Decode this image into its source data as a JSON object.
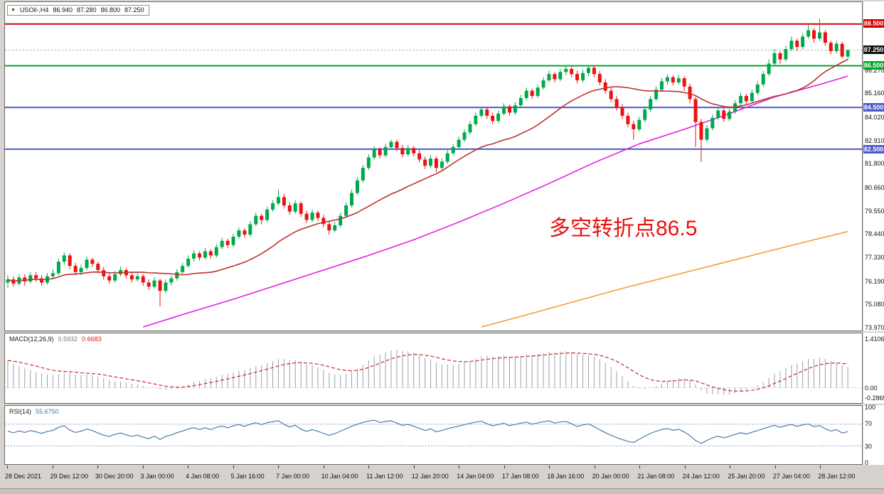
{
  "title_box": {
    "symbol": "USOil-,H4",
    "open": "86.940",
    "high": "87.280",
    "low": "86.800",
    "close": "87.250"
  },
  "annotation": {
    "text": "多空转折点86.5",
    "color": "#e81010"
  },
  "colors": {
    "candle_up": "#00a94c",
    "candle_down": "#ee1111",
    "ma_fast": "#c03030",
    "ma_mid": "#e11fe1",
    "ma_slow": "#efa031",
    "hline_red": "#d10000",
    "hline_green": "#00a62c",
    "hline_blue": "#4a5acc",
    "macd_histogram": "#9aa0a6",
    "macd_signal": "#cc2222",
    "rsi_line": "#4a7aa8",
    "current_price_bg": "#101010",
    "background": "#d6d3ce"
  },
  "main_chart": {
    "h_lines": [
      {
        "label": "88.500",
        "color": "#d10000"
      },
      {
        "label": "86.500",
        "color": "#00a62c"
      },
      {
        "label": "84.500",
        "color": "#4a5acc"
      },
      {
        "label": "82.500",
        "color": "#4a5acc"
      }
    ],
    "current_price": {
      "value": 87.25,
      "label": "87.250"
    },
    "y_labels": [
      "86.270",
      "85.160",
      "84.020",
      "82.910",
      "81.800",
      "80.660",
      "79.550",
      "78.440",
      "77.330",
      "76.190",
      "75.080",
      "73.970"
    ]
  },
  "x_axis": {
    "bars_per_label": 8,
    "labels": [
      "28 Dec 2021",
      "29 Dec 12:00",
      "30 Dec 20:00",
      "3 Jan 00:00",
      "4 Jan 08:00",
      "5 Jan 16:00",
      "7 Jan 00:00",
      "10 Jan 04:00",
      "11 Jan 12:00",
      "12 Jan 20:00",
      "14 Jan 04:00",
      "17 Jan 08:00",
      "18 Jan 16:00",
      "20 Jan 00:00",
      "21 Jan 08:00",
      "24 Jan 12:00",
      "25 Jan 20:00",
      "27 Jan 04:00",
      "28 Jan 12:00"
    ]
  },
  "chart_data": {
    "type": "candlestick",
    "symbol": "USOil",
    "timeframe": "H4",
    "ylim": [
      73.8,
      89.55
    ],
    "candles": [
      [
        76.1,
        76.45,
        75.85,
        76.25
      ],
      [
        76.25,
        76.4,
        75.9,
        76.05
      ],
      [
        76.05,
        76.5,
        75.95,
        76.35
      ],
      [
        76.35,
        76.5,
        75.95,
        76.15
      ],
      [
        76.15,
        76.6,
        76.05,
        76.45
      ],
      [
        76.45,
        76.6,
        76.15,
        76.3
      ],
      [
        76.3,
        76.45,
        75.95,
        76.1
      ],
      [
        76.1,
        76.55,
        76.0,
        76.4
      ],
      [
        76.4,
        76.75,
        76.25,
        76.55
      ],
      [
        76.55,
        77.25,
        76.45,
        77.1
      ],
      [
        77.1,
        77.55,
        76.95,
        77.4
      ],
      [
        77.4,
        77.5,
        76.75,
        76.9
      ],
      [
        76.9,
        77.05,
        76.45,
        76.6
      ],
      [
        76.6,
        76.95,
        76.45,
        76.8
      ],
      [
        76.8,
        77.35,
        76.7,
        77.2
      ],
      [
        77.2,
        77.3,
        76.85,
        77.0
      ],
      [
        77.0,
        77.1,
        76.55,
        76.7
      ],
      [
        76.7,
        76.85,
        76.25,
        76.4
      ],
      [
        76.4,
        76.55,
        76.05,
        76.2
      ],
      [
        76.2,
        76.65,
        76.1,
        76.5
      ],
      [
        76.5,
        76.85,
        76.4,
        76.7
      ],
      [
        76.7,
        76.8,
        76.3,
        76.45
      ],
      [
        76.45,
        76.6,
        76.1,
        76.25
      ],
      [
        76.25,
        76.55,
        76.15,
        76.4
      ],
      [
        76.4,
        76.5,
        75.95,
        76.1
      ],
      [
        76.1,
        76.25,
        75.75,
        75.9
      ],
      [
        75.9,
        76.35,
        75.8,
        76.2
      ],
      [
        76.2,
        76.3,
        74.95,
        75.7
      ],
      [
        75.7,
        76.25,
        75.6,
        76.1
      ],
      [
        76.1,
        76.45,
        75.95,
        76.3
      ],
      [
        76.3,
        76.75,
        76.2,
        76.6
      ],
      [
        76.6,
        77.05,
        76.5,
        76.9
      ],
      [
        76.9,
        77.4,
        76.8,
        77.25
      ],
      [
        77.25,
        77.65,
        77.1,
        77.5
      ],
      [
        77.5,
        77.6,
        77.15,
        77.3
      ],
      [
        77.3,
        77.75,
        77.2,
        77.6
      ],
      [
        77.6,
        77.7,
        77.25,
        77.4
      ],
      [
        77.4,
        77.95,
        77.3,
        77.8
      ],
      [
        77.8,
        78.25,
        77.7,
        78.1
      ],
      [
        78.1,
        78.2,
        77.75,
        77.9
      ],
      [
        77.9,
        78.45,
        77.8,
        78.3
      ],
      [
        78.3,
        78.75,
        78.2,
        78.6
      ],
      [
        78.6,
        78.7,
        78.25,
        78.4
      ],
      [
        78.4,
        79.05,
        78.3,
        78.9
      ],
      [
        78.9,
        79.45,
        78.8,
        79.3
      ],
      [
        79.3,
        79.4,
        78.9,
        79.1
      ],
      [
        79.1,
        79.75,
        79.0,
        79.6
      ],
      [
        79.6,
        80.05,
        79.5,
        79.9
      ],
      [
        79.9,
        80.55,
        79.8,
        80.2
      ],
      [
        80.2,
        80.35,
        79.65,
        79.8
      ],
      [
        79.8,
        79.95,
        79.35,
        79.5
      ],
      [
        79.5,
        80.05,
        79.4,
        79.9
      ],
      [
        79.9,
        80.0,
        79.25,
        79.4
      ],
      [
        79.4,
        79.55,
        78.95,
        79.1
      ],
      [
        79.1,
        79.6,
        79.0,
        79.45
      ],
      [
        79.45,
        79.55,
        79.05,
        79.2
      ],
      [
        79.2,
        79.35,
        78.75,
        78.9
      ],
      [
        78.9,
        79.05,
        78.4,
        78.6
      ],
      [
        78.6,
        79.0,
        78.5,
        78.85
      ],
      [
        78.85,
        79.45,
        78.75,
        79.3
      ],
      [
        79.3,
        79.95,
        79.2,
        79.8
      ],
      [
        79.8,
        80.55,
        79.7,
        80.4
      ],
      [
        80.4,
        81.15,
        80.3,
        81.0
      ],
      [
        81.0,
        81.75,
        80.9,
        81.6
      ],
      [
        81.6,
        82.25,
        81.5,
        82.1
      ],
      [
        82.1,
        82.65,
        82.0,
        82.5
      ],
      [
        82.5,
        82.6,
        82.05,
        82.2
      ],
      [
        82.2,
        82.75,
        82.1,
        82.6
      ],
      [
        82.6,
        82.95,
        82.5,
        82.85
      ],
      [
        82.85,
        82.95,
        82.4,
        82.55
      ],
      [
        82.55,
        82.7,
        82.1,
        82.25
      ],
      [
        82.25,
        82.7,
        82.15,
        82.55
      ],
      [
        82.55,
        82.65,
        82.15,
        82.3
      ],
      [
        82.3,
        82.45,
        81.85,
        82.0
      ],
      [
        82.0,
        82.15,
        81.55,
        81.7
      ],
      [
        81.7,
        82.2,
        81.6,
        82.05
      ],
      [
        82.05,
        82.15,
        81.4,
        81.6
      ],
      [
        81.6,
        82.05,
        81.5,
        81.9
      ],
      [
        81.9,
        82.45,
        81.8,
        82.3
      ],
      [
        82.3,
        82.75,
        82.2,
        82.6
      ],
      [
        82.6,
        83.1,
        82.5,
        82.95
      ],
      [
        82.95,
        83.45,
        82.85,
        83.3
      ],
      [
        83.3,
        83.85,
        83.2,
        83.7
      ],
      [
        83.7,
        84.25,
        83.6,
        84.1
      ],
      [
        84.1,
        84.55,
        84.0,
        84.4
      ],
      [
        84.4,
        84.5,
        83.95,
        84.1
      ],
      [
        84.1,
        84.25,
        83.7,
        83.85
      ],
      [
        83.85,
        84.35,
        83.75,
        84.2
      ],
      [
        84.2,
        84.7,
        84.1,
        84.55
      ],
      [
        84.55,
        84.65,
        84.1,
        84.25
      ],
      [
        84.25,
        84.75,
        84.15,
        84.6
      ],
      [
        84.6,
        85.1,
        84.5,
        84.95
      ],
      [
        84.95,
        85.45,
        84.85,
        85.3
      ],
      [
        85.3,
        85.4,
        84.9,
        85.05
      ],
      [
        85.05,
        85.6,
        84.95,
        85.45
      ],
      [
        85.45,
        85.95,
        85.35,
        85.8
      ],
      [
        85.8,
        86.25,
        85.7,
        86.1
      ],
      [
        86.1,
        86.2,
        85.7,
        85.85
      ],
      [
        85.85,
        86.35,
        85.75,
        86.2
      ],
      [
        86.2,
        86.5,
        86.05,
        86.35
      ],
      [
        86.35,
        86.45,
        85.95,
        86.1
      ],
      [
        86.1,
        86.25,
        85.65,
        85.8
      ],
      [
        85.8,
        86.3,
        85.7,
        86.15
      ],
      [
        86.15,
        86.5,
        86.0,
        86.4
      ],
      [
        86.4,
        86.5,
        85.95,
        86.1
      ],
      [
        86.1,
        86.25,
        85.55,
        85.7
      ],
      [
        85.7,
        85.85,
        85.15,
        85.3
      ],
      [
        85.3,
        85.45,
        84.75,
        84.9
      ],
      [
        84.9,
        85.05,
        84.35,
        84.5
      ],
      [
        84.5,
        84.65,
        83.95,
        84.1
      ],
      [
        84.1,
        84.25,
        83.55,
        83.7
      ],
      [
        83.7,
        83.85,
        82.95,
        83.45
      ],
      [
        83.45,
        84.05,
        83.35,
        83.9
      ],
      [
        83.9,
        84.55,
        83.8,
        84.4
      ],
      [
        84.4,
        85.05,
        84.3,
        84.9
      ],
      [
        84.9,
        85.5,
        84.8,
        85.35
      ],
      [
        85.35,
        85.9,
        85.25,
        85.75
      ],
      [
        85.75,
        86.1,
        85.6,
        85.95
      ],
      [
        85.95,
        86.05,
        85.55,
        85.7
      ],
      [
        85.7,
        86.05,
        85.6,
        85.9
      ],
      [
        85.9,
        86.0,
        85.3,
        85.5
      ],
      [
        85.5,
        85.65,
        84.7,
        84.9
      ],
      [
        84.9,
        85.0,
        82.6,
        83.8
      ],
      [
        83.8,
        83.95,
        81.9,
        82.95
      ],
      [
        82.95,
        83.65,
        82.85,
        83.5
      ],
      [
        83.5,
        84.15,
        83.4,
        84.0
      ],
      [
        84.0,
        84.5,
        83.9,
        84.35
      ],
      [
        84.35,
        84.45,
        83.8,
        83.95
      ],
      [
        83.95,
        84.45,
        83.85,
        84.3
      ],
      [
        84.3,
        84.85,
        84.2,
        84.7
      ],
      [
        84.7,
        85.2,
        84.6,
        85.05
      ],
      [
        85.05,
        85.15,
        84.65,
        84.8
      ],
      [
        84.8,
        85.35,
        84.7,
        85.2
      ],
      [
        85.2,
        85.75,
        85.1,
        85.6
      ],
      [
        85.6,
        86.25,
        85.5,
        86.1
      ],
      [
        86.1,
        86.8,
        86.0,
        86.6
      ],
      [
        86.6,
        87.3,
        86.5,
        87.1
      ],
      [
        87.1,
        87.2,
        86.6,
        86.8
      ],
      [
        86.8,
        87.45,
        86.7,
        87.3
      ],
      [
        87.3,
        87.9,
        87.2,
        87.7
      ],
      [
        87.7,
        87.8,
        87.2,
        87.4
      ],
      [
        87.4,
        88.05,
        87.3,
        87.9
      ],
      [
        87.9,
        88.45,
        87.8,
        88.2
      ],
      [
        88.2,
        88.3,
        87.6,
        87.8
      ],
      [
        87.8,
        88.75,
        87.7,
        88.1
      ],
      [
        88.1,
        88.2,
        87.45,
        87.6
      ],
      [
        87.6,
        87.7,
        87.05,
        87.2
      ],
      [
        87.2,
        87.7,
        87.1,
        87.55
      ],
      [
        87.55,
        87.65,
        86.85,
        86.94
      ],
      [
        86.94,
        87.28,
        86.8,
        87.25
      ]
    ],
    "overlays": [
      {
        "name": "ma-fast",
        "type": "sma",
        "period": 21,
        "color": "#c03030"
      },
      {
        "name": "ma-mid",
        "type": "points",
        "color": "#e11fe1",
        "points": [
          [
            24,
            73.97
          ],
          [
            32,
            74.65
          ],
          [
            40,
            75.3
          ],
          [
            48,
            76.0
          ],
          [
            56,
            76.7
          ],
          [
            64,
            77.4
          ],
          [
            72,
            78.15
          ],
          [
            80,
            79.0
          ],
          [
            88,
            79.9
          ],
          [
            96,
            80.85
          ],
          [
            104,
            81.85
          ],
          [
            112,
            82.75
          ],
          [
            120,
            83.45
          ],
          [
            128,
            84.2
          ],
          [
            136,
            85.0
          ],
          [
            144,
            85.6
          ],
          [
            149,
            86.0
          ]
        ]
      },
      {
        "name": "ma-slow",
        "type": "points",
        "color": "#efa031",
        "points": [
          [
            84,
            73.97
          ],
          [
            92,
            74.55
          ],
          [
            100,
            75.15
          ],
          [
            108,
            75.75
          ],
          [
            116,
            76.3
          ],
          [
            124,
            76.85
          ],
          [
            132,
            77.4
          ],
          [
            140,
            77.95
          ],
          [
            149,
            78.55
          ]
        ]
      }
    ]
  },
  "macd": {
    "title": "MACD(12,26,9)",
    "value_main": "0.5932",
    "value_signal": "0.6683",
    "params": [
      12,
      26,
      9
    ],
    "seed": {
      "ema_fast": 76.65,
      "ema_slow": 75.75,
      "signal": 0.8
    },
    "axis_labels": [
      "1.4106",
      "0.00",
      "-0.2865"
    ]
  },
  "rsi": {
    "title": "RSI(14)",
    "value": "55.6750",
    "period": 14,
    "levels": [
      70,
      30
    ],
    "axis_labels": [
      "100",
      "70",
      "30",
      "0"
    ]
  }
}
